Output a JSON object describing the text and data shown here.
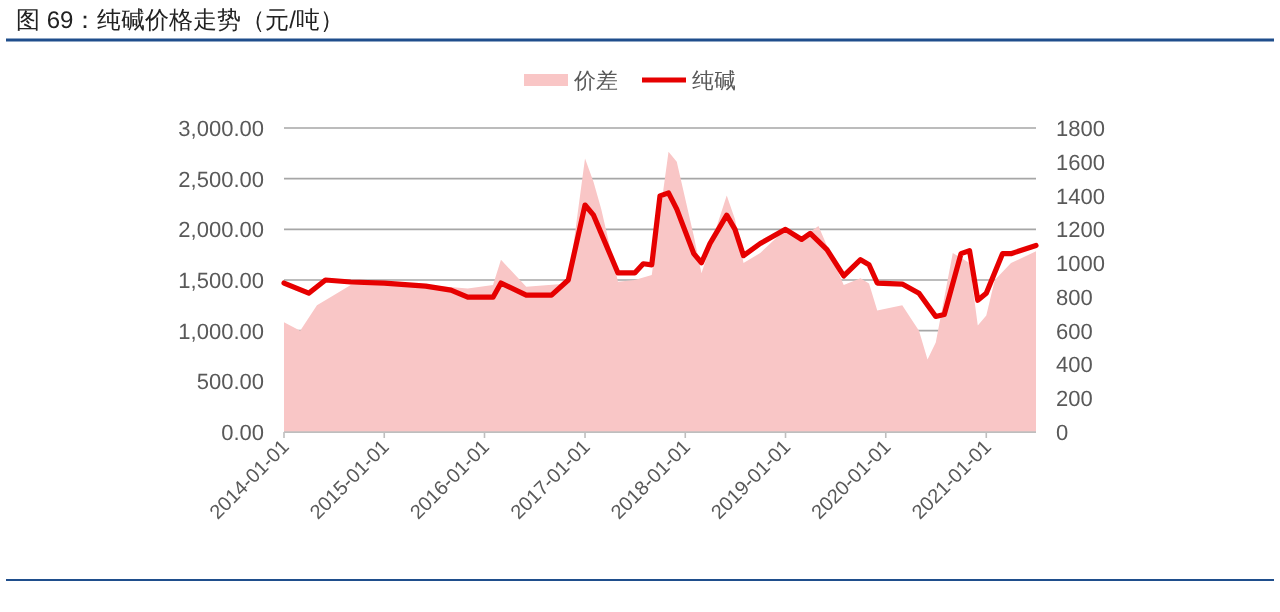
{
  "chart_data": {
    "type": "area",
    "title": "图 69：纯碱价格走势（元/吨）",
    "series": [
      {
        "name": "价差",
        "axis": "y2",
        "color": "#f9c6c6",
        "x": [
          "2014-01",
          "2014-03",
          "2014-05",
          "2014-07",
          "2014-09",
          "2015-01",
          "2015-06",
          "2015-11",
          "2016-02",
          "2016-03",
          "2016-06",
          "2016-11",
          "2017-01",
          "2017-02",
          "2017-03",
          "2017-05",
          "2017-07",
          "2017-09",
          "2017-11",
          "2017-12",
          "2018-02",
          "2018-03",
          "2018-06",
          "2018-07",
          "2018-08",
          "2018-10",
          "2019-01",
          "2019-03",
          "2019-05",
          "2019-08",
          "2019-10",
          "2019-11",
          "2019-12",
          "2020-03",
          "2020-05",
          "2020-06",
          "2020-07",
          "2020-09",
          "2020-11",
          "2020-12",
          "2021-01",
          "2021-02",
          "2021-04",
          "2021-07"
        ],
        "values": [
          650,
          600,
          750,
          810,
          870,
          880,
          870,
          850,
          870,
          1020,
          860,
          880,
          1620,
          1480,
          1320,
          890,
          900,
          930,
          1660,
          1600,
          1160,
          940,
          1400,
          1260,
          1000,
          1060,
          1200,
          1150,
          1220,
          870,
          910,
          880,
          720,
          750,
          600,
          430,
          530,
          1060,
          1000,
          630,
          690,
          900,
          1000,
          1070
        ]
      },
      {
        "name": "纯碱",
        "type": "line",
        "color": "#e60000",
        "x": [
          "2014-01",
          "2014-04",
          "2014-06",
          "2014-09",
          "2015-01",
          "2015-06",
          "2015-09",
          "2015-11",
          "2016-02",
          "2016-03",
          "2016-06",
          "2016-09",
          "2016-11",
          "2017-01",
          "2017-02",
          "2017-03",
          "2017-05",
          "2017-07",
          "2017-08",
          "2017-09",
          "2017-10",
          "2017-11",
          "2017-12",
          "2018-02",
          "2018-03",
          "2018-04",
          "2018-06",
          "2018-07",
          "2018-08",
          "2018-10",
          "2019-01",
          "2019-03",
          "2019-04",
          "2019-06",
          "2019-08",
          "2019-10",
          "2019-11",
          "2019-12",
          "2020-03",
          "2020-05",
          "2020-07",
          "2020-08",
          "2020-10",
          "2020-11",
          "2020-12",
          "2021-01",
          "2021-03",
          "2021-04",
          "2021-07"
        ],
        "values": [
          1470,
          1370,
          1500,
          1480,
          1470,
          1440,
          1400,
          1330,
          1330,
          1470,
          1350,
          1350,
          1500,
          2240,
          2140,
          1960,
          1570,
          1570,
          1660,
          1650,
          2330,
          2360,
          2200,
          1760,
          1670,
          1860,
          2140,
          2000,
          1740,
          1860,
          2000,
          1900,
          1960,
          1800,
          1540,
          1700,
          1650,
          1470,
          1460,
          1370,
          1140,
          1160,
          1760,
          1790,
          1300,
          1370,
          1760,
          1760,
          1840
        ]
      }
    ],
    "xlim": [
      "2014-01",
      "2021-07"
    ],
    "xticks": [
      "2014-01-01",
      "2015-01-01",
      "2016-01-01",
      "2017-01-01",
      "2018-01-01",
      "2019-01-01",
      "2020-01-01",
      "2021-01-01"
    ],
    "ylim": [
      0,
      3000
    ],
    "yticks": [
      {
        "value": 0,
        "label": "0.00"
      },
      {
        "value": 500,
        "label": "500.00"
      },
      {
        "value": 1000,
        "label": "1,000.00"
      },
      {
        "value": 1500,
        "label": "1,500.00"
      },
      {
        "value": 2000,
        "label": "2,000.00"
      },
      {
        "value": 2500,
        "label": "2,500.00"
      },
      {
        "value": 3000,
        "label": "3,000.00"
      }
    ],
    "y2lim": [
      0,
      1800
    ],
    "y2ticks": [
      0,
      200,
      400,
      600,
      800,
      1000,
      1200,
      1400,
      1600,
      1800
    ],
    "grid": "y",
    "legend": "top"
  }
}
